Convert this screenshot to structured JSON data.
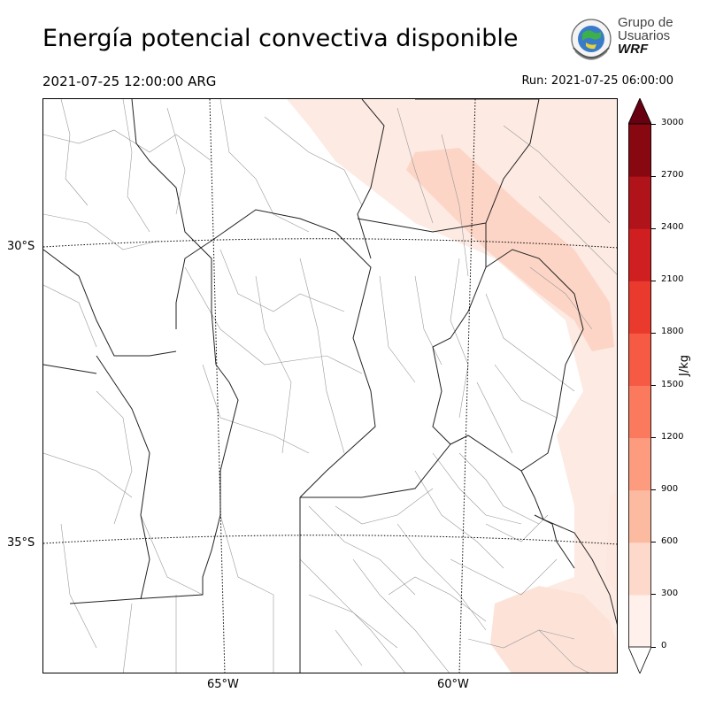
{
  "header": {
    "title": "Energía potencial convectiva disponible",
    "valid_time": "2021-07-25 12:00:00 ARG",
    "run_time": "Run: 2021-07-25 06:00:00"
  },
  "logo": {
    "line1": "Grupo de",
    "line2": "Usuarios",
    "line3": "WRF"
  },
  "map": {
    "lat_labels": [
      "30°S",
      "35°S"
    ],
    "lon_labels": [
      "65°W",
      "60°W"
    ]
  },
  "colorbar": {
    "unit": "J/kg",
    "ticks": [
      "0",
      "300",
      "600",
      "900",
      "1200",
      "1500",
      "1800",
      "2100",
      "2400",
      "2700",
      "3000"
    ],
    "colors": [
      "#fff0eb",
      "#fdd9cc",
      "#fcbba1",
      "#fc9b7e",
      "#fb7a5e",
      "#f65a43",
      "#ea3a2d",
      "#d01f20",
      "#b0131a",
      "#880812"
    ],
    "extend_color": "#670010"
  }
}
